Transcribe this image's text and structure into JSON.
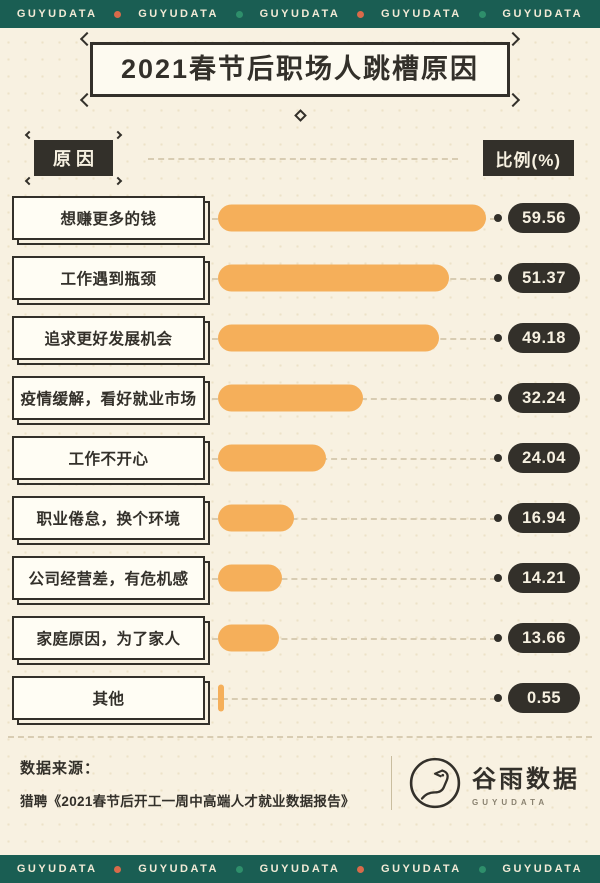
{
  "banner": {
    "brand": "GUYUDATA"
  },
  "header": {
    "title": "2021春节后职场人跳槽原因"
  },
  "labels": {
    "reason": "原因",
    "ratio": "比例(%)"
  },
  "chart_data": {
    "type": "bar",
    "orientation": "horizontal",
    "title": "2021春节后职场人跳槽原因",
    "value_axis_label": "比例(%)",
    "xlim": [
      0,
      60
    ],
    "grid": false,
    "legend": false,
    "categories": [
      "想赚更多的钱",
      "工作遇到瓶颈",
      "追求更好发展机会",
      "疫情缓解，看好就业市场",
      "工作不开心",
      "职业倦怠，换个环境",
      "公司经营差，有危机感",
      "家庭原因，为了家人",
      "其他"
    ],
    "values": [
      59.56,
      51.37,
      49.18,
      32.24,
      24.04,
      16.94,
      14.21,
      13.66,
      0.55
    ],
    "bar_color": "#F5AF5A",
    "value_pill_color": "#33302A"
  },
  "footer": {
    "source_label": "数据来源：",
    "source_text": "猎聘《2021春节后开工一周中高端人才就业数据报告》",
    "logo_text": "谷雨数据",
    "logo_subtext": "GUYUDATA"
  },
  "colors": {
    "background": "#F8F1E1",
    "ink": "#33302A",
    "bar": "#F5AF5A",
    "banner_bg": "#1A5E53",
    "banner_text": "#F2EAD6",
    "dot_orange": "#D96A4A",
    "dot_green": "#2E8F6B"
  }
}
